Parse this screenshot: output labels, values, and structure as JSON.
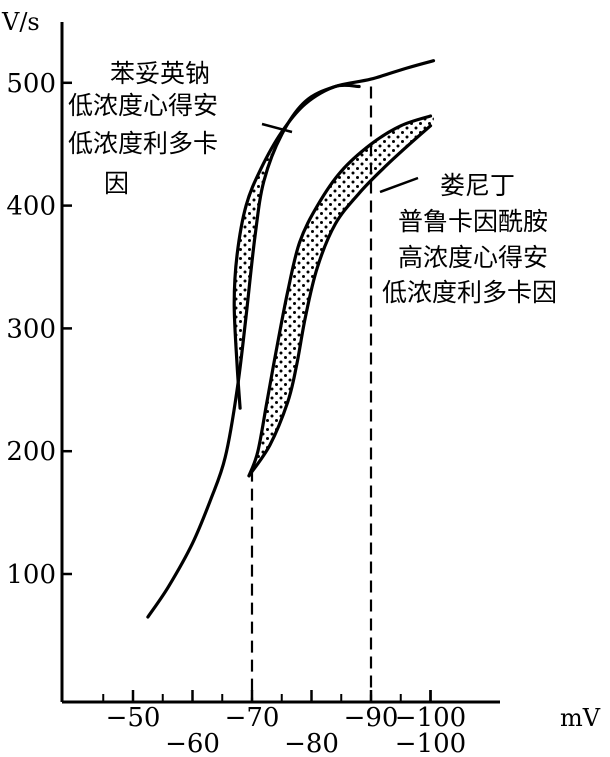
{
  "chart_data": {
    "type": "line",
    "title": "",
    "ylabel": "V/s",
    "xlabel": "mV",
    "ylim": [
      30,
      580
    ],
    "xlim": [
      -45,
      -103
    ],
    "y_ticks": [
      {
        "value": 100,
        "label": "100"
      },
      {
        "value": 200,
        "label": "200"
      },
      {
        "value": 300,
        "label": "300"
      },
      {
        "value": 400,
        "label": "400"
      },
      {
        "value": 500,
        "label": "500"
      }
    ],
    "x_ticks_upper": [
      {
        "value": -50,
        "label": "−50"
      },
      {
        "value": -70,
        "label": "−70"
      },
      {
        "value": -90,
        "label": "−90"
      },
      {
        "value": -100,
        "label": "−100"
      }
    ],
    "x_ticks_lower": [
      {
        "value": -60,
        "label": "−60"
      },
      {
        "value": -80,
        "label": "−80"
      },
      {
        "value": -100,
        "label": "−100"
      }
    ],
    "minor_x_ticks": [
      -45,
      -55,
      -65,
      -75,
      -85,
      -95
    ],
    "dashed_lines": [
      {
        "x": -70,
        "y_top": 185
      },
      {
        "x": -90,
        "y_top": 497
      }
    ],
    "series": [
      {
        "name": "",
        "role": "control-curve",
        "points": [
          [
            -52.5,
            65
          ],
          [
            -56,
            90
          ],
          [
            -60,
            125
          ],
          [
            -63,
            160
          ],
          [
            -65.5,
            195
          ],
          [
            -67.5,
            250
          ],
          [
            -69,
            310
          ],
          [
            -70.5,
            375
          ],
          [
            -72,
            420
          ],
          [
            -75,
            458
          ],
          [
            -79,
            485
          ],
          [
            -84,
            497
          ],
          [
            -90,
            503
          ],
          [
            -96,
            512
          ],
          [
            -100.5,
            518
          ]
        ]
      },
      {
        "name": "",
        "role": "band-A-upper-edge",
        "points": [
          [
            -68,
            235
          ],
          [
            -67.5,
            270
          ],
          [
            -67,
            320
          ],
          [
            -67.5,
            360
          ],
          [
            -69,
            400
          ],
          [
            -71.5,
            430
          ],
          [
            -75,
            460
          ],
          [
            -79,
            483
          ],
          [
            -84,
            497
          ],
          [
            -88,
            497
          ]
        ]
      },
      {
        "name": "",
        "role": "band-B-upper-edge",
        "points": [
          [
            -69.5,
            180
          ],
          [
            -71,
            200
          ],
          [
            -72.5,
            240
          ],
          [
            -74,
            280
          ],
          [
            -76,
            330
          ],
          [
            -78,
            370
          ],
          [
            -81,
            400
          ],
          [
            -85,
            428
          ],
          [
            -90,
            450
          ],
          [
            -95,
            465
          ],
          [
            -100,
            473
          ]
        ]
      },
      {
        "name": "",
        "role": "band-B-lower-edge",
        "points": [
          [
            -69.5,
            180
          ],
          [
            -73,
            205
          ],
          [
            -76,
            240
          ],
          [
            -77.5,
            270
          ],
          [
            -79,
            310
          ],
          [
            -81,
            350
          ],
          [
            -84,
            385
          ],
          [
            -88,
            410
          ],
          [
            -92,
            430
          ],
          [
            -96,
            448
          ],
          [
            -100,
            465
          ]
        ]
      }
    ],
    "annotations": [
      {
        "lines": [
          "苯妥英钠",
          "低浓度心得安",
          "低浓度利多卡",
          "因"
        ],
        "points_to": "band-A"
      },
      {
        "lines": [
          "娄尼丁",
          "普鲁卡因酰胺",
          "高浓度心得安",
          "低浓度利多卡因"
        ],
        "points_to": "band-B"
      }
    ],
    "grid": false,
    "legend": "none"
  }
}
